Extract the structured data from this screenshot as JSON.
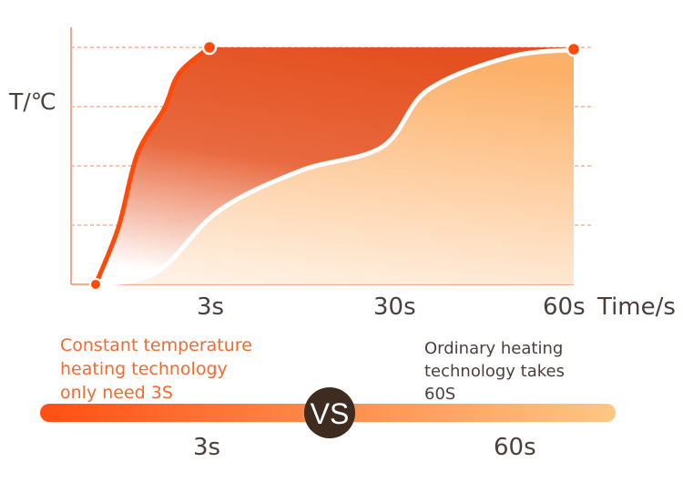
{
  "chart_data": {
    "type": "area",
    "ylabel": "T/℃",
    "xlabel": "Time/s",
    "x_tick_labels": [
      "3s",
      "30s",
      "60s"
    ],
    "x_ticks": [
      3,
      30,
      60
    ],
    "ylim": [
      0,
      100
    ],
    "grid": "horizontal dashed",
    "series": [
      {
        "name": "Constant temperature heating",
        "x": [
          0,
          0.6,
          1.1,
          1.8,
          2.2,
          3,
          60
        ],
        "y": [
          0,
          24,
          55,
          74,
          89,
          100,
          100
        ]
      },
      {
        "name": "Ordinary heating",
        "x": [
          0,
          1.6,
          4.3,
          15.9,
          27.4,
          34.7,
          48.9,
          60
        ],
        "y": [
          0,
          5,
          31,
          48,
          58,
          82,
          96,
          99
        ]
      }
    ],
    "colors": {
      "fast": "#ff4a0a",
      "fast_fill": "#e4501f",
      "slow_fill": "#fdb871",
      "axis": "#f7a98a"
    }
  },
  "captions": {
    "fast": [
      "Constant temperature",
      "heating technology",
      "only need 3S"
    ],
    "slow": [
      "Ordinary heating",
      "technology takes",
      "60S"
    ]
  },
  "bar": {
    "vs": "VS",
    "left": "3s",
    "right": "60s"
  }
}
